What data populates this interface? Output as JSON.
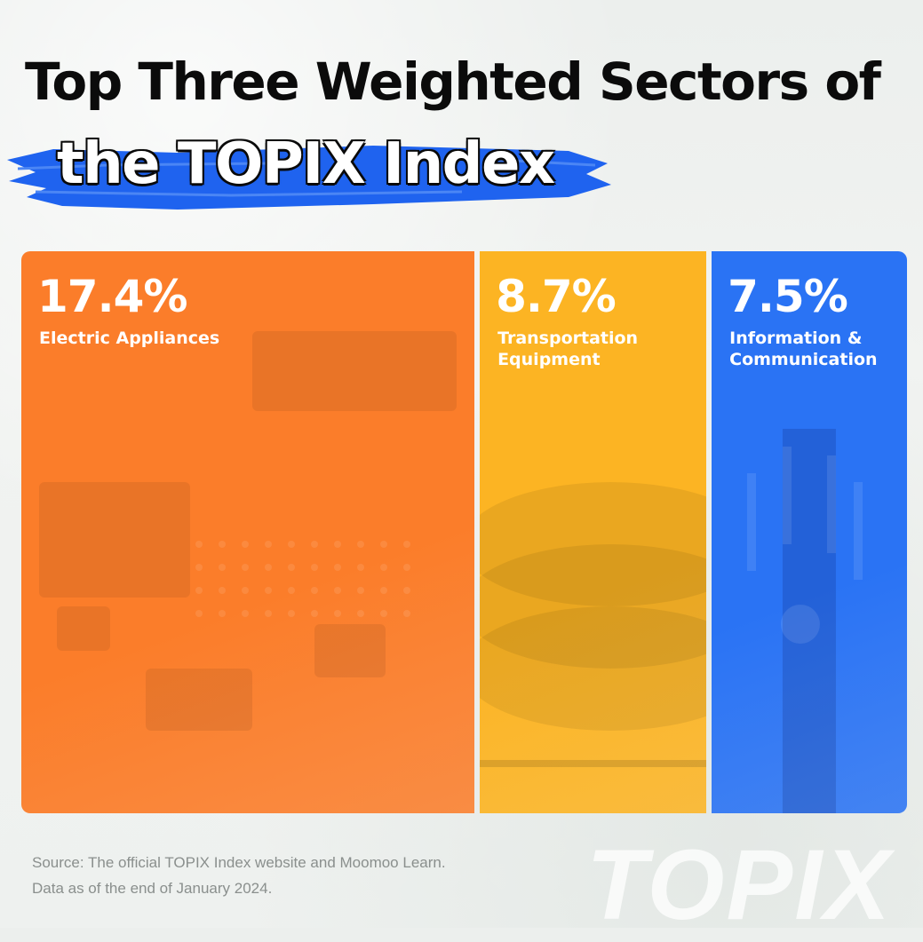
{
  "header": {
    "title_line1": "Top Three Weighted Sectors of",
    "title_line2": "the TOPIX Index"
  },
  "chart_data": {
    "type": "bar",
    "categories": [
      "Electric Appliances",
      "Transportation Equipment",
      "Information & Communication"
    ],
    "category_labels": [
      "Electric Appliances",
      "Transportation\nEquipment",
      "Information &\nCommunication"
    ],
    "values": [
      17.4,
      8.7,
      7.5
    ],
    "value_labels": [
      "17.4%",
      "8.7%",
      "7.5%"
    ],
    "title": "Top Three Weighted Sectors of the TOPIX Index",
    "colors": [
      "#fb7d2a",
      "#fcb423",
      "#2a73f4"
    ]
  },
  "footer": {
    "source_line1": "Source: The official TOPIX Index website and Moomoo Learn.",
    "source_line2": "Data as of the end of January 2024.",
    "watermark": "TOPIX"
  },
  "accent_color": "#1f63ef"
}
